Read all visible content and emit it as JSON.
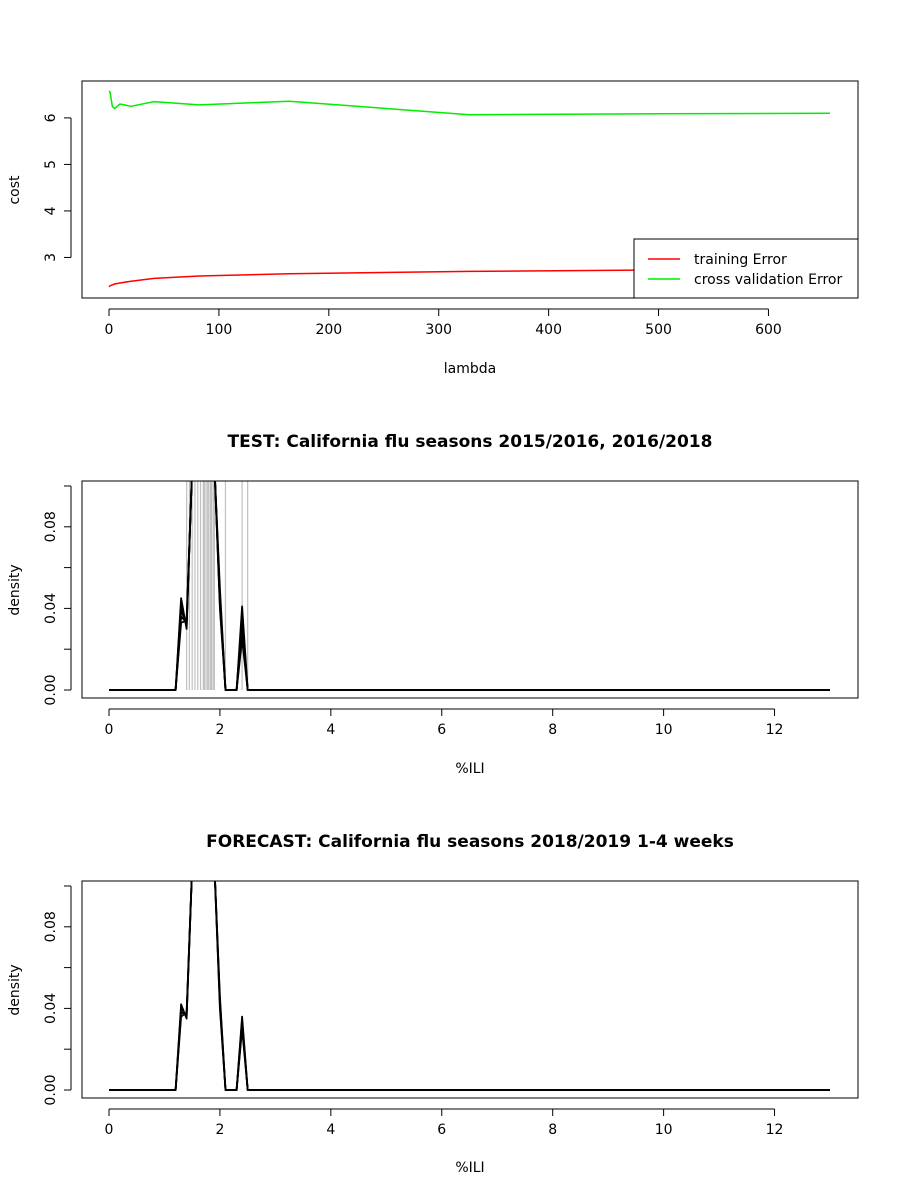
{
  "chart_data": [
    {
      "type": "line",
      "title": "",
      "xlabel": "lambda",
      "ylabel": "cost",
      "xlim": [
        0,
        656
      ],
      "ylim": [
        2.3,
        6.6
      ],
      "xticks": [
        0,
        100,
        200,
        300,
        400,
        500,
        600
      ],
      "yticks": [
        3,
        4,
        5,
        6
      ],
      "legend": {
        "position": "bottom-right",
        "entries": [
          "training Error",
          "cross validation Error"
        ]
      },
      "series": [
        {
          "name": "training Error",
          "color": "#ff0000",
          "x": [
            0,
            1,
            3,
            5,
            10,
            20,
            41,
            82,
            164,
            328,
            500,
            656
          ],
          "y": [
            2.37,
            2.39,
            2.41,
            2.43,
            2.45,
            2.49,
            2.55,
            2.6,
            2.65,
            2.7,
            2.73,
            2.75
          ]
        },
        {
          "name": "cross validation Error",
          "color": "#00ee00",
          "x": [
            0,
            1,
            3,
            5,
            10,
            20,
            41,
            82,
            164,
            328,
            500,
            656
          ],
          "y": [
            6.58,
            6.55,
            6.25,
            6.2,
            6.3,
            6.25,
            6.35,
            6.28,
            6.36,
            6.07,
            6.09,
            6.1
          ]
        }
      ]
    },
    {
      "type": "line",
      "title": "TEST: California  flu seasons 2015/2016, 2016/2018",
      "xlabel": "%ILI",
      "ylabel": "density",
      "xlim": [
        0,
        13
      ],
      "ylim": [
        0,
        0.1
      ],
      "xticks": [
        0,
        2,
        4,
        6,
        8,
        10,
        12
      ],
      "yticks": [
        0.0,
        0.02,
        0.04,
        0.06,
        0.08,
        0.1
      ],
      "ytick_labels": [
        "0.00",
        "",
        "0.04",
        "",
        "0.08",
        ""
      ],
      "vertical_lines": {
        "color": "#c0c0c0",
        "x": [
          1.4,
          1.45,
          1.5,
          1.55,
          1.6,
          1.65,
          1.7,
          1.72,
          1.75,
          1.78,
          1.8,
          1.83,
          1.85,
          1.88,
          1.9,
          2.1,
          2.4,
          2.5
        ]
      },
      "series": [
        {
          "color": "#000000",
          "x": [
            0,
            1.2,
            1.3,
            1.4,
            1.5,
            1.9,
            2.0,
            2.1,
            2.3,
            2.4,
            2.5,
            13
          ],
          "y": [
            0,
            0,
            0.045,
            0.03,
            0.11,
            0.11,
            0.04,
            0,
            0,
            0.041,
            0,
            0
          ]
        },
        {
          "color": "#000000",
          "x": [
            0,
            1.2,
            1.3,
            1.4,
            1.5,
            1.9,
            2.0,
            2.1,
            2.3,
            2.4,
            2.5,
            13
          ],
          "y": [
            0,
            0,
            0.042,
            0.031,
            0.11,
            0.11,
            0.042,
            0,
            0,
            0.036,
            0,
            0
          ]
        },
        {
          "color": "#000000",
          "x": [
            0,
            1.2,
            1.3,
            1.4,
            1.5,
            1.9,
            2.0,
            2.1,
            2.3,
            2.4,
            2.5,
            13
          ],
          "y": [
            0,
            0,
            0.039,
            0.032,
            0.11,
            0.11,
            0.044,
            0,
            0,
            0.032,
            0,
            0
          ]
        },
        {
          "color": "#000000",
          "x": [
            0,
            1.2,
            1.3,
            1.4,
            1.5,
            1.9,
            2.0,
            2.1,
            2.3,
            2.4,
            2.5,
            13
          ],
          "y": [
            0,
            0,
            0.036,
            0.033,
            0.11,
            0.11,
            0.046,
            0,
            0,
            0.029,
            0,
            0
          ]
        },
        {
          "color": "#000000",
          "x": [
            0,
            1.2,
            1.3,
            1.4,
            1.5,
            1.9,
            2.0,
            2.1,
            2.3,
            2.4,
            2.5,
            13
          ],
          "y": [
            0,
            0,
            0.033,
            0.034,
            0.11,
            0.11,
            0.05,
            0,
            0,
            0.025,
            0,
            0
          ]
        }
      ]
    },
    {
      "type": "line",
      "title": "FORECAST: California flu seasons 2018/2019 1-4 weeks",
      "xlabel": "%ILI",
      "ylabel": "density",
      "xlim": [
        0,
        13
      ],
      "ylim": [
        0,
        0.1
      ],
      "xticks": [
        0,
        2,
        4,
        6,
        8,
        10,
        12
      ],
      "yticks": [
        0.0,
        0.02,
        0.04,
        0.06,
        0.08,
        0.1
      ],
      "ytick_labels": [
        "0.00",
        "",
        "0.04",
        "",
        "0.08",
        ""
      ],
      "series": [
        {
          "color": "#000000",
          "x": [
            0,
            1.2,
            1.3,
            1.4,
            1.5,
            1.9,
            2.0,
            2.1,
            2.3,
            2.4,
            2.5,
            13
          ],
          "y": [
            0,
            0,
            0.042,
            0.035,
            0.11,
            0.11,
            0.04,
            0,
            0,
            0.036,
            0,
            0
          ]
        },
        {
          "color": "#000000",
          "x": [
            0,
            1.2,
            1.3,
            1.4,
            1.5,
            1.9,
            2.0,
            2.1,
            2.3,
            2.4,
            2.5,
            13
          ],
          "y": [
            0,
            0,
            0.04,
            0.036,
            0.11,
            0.11,
            0.042,
            0,
            0,
            0.034,
            0,
            0
          ]
        },
        {
          "color": "#000000",
          "x": [
            0,
            1.2,
            1.3,
            1.4,
            1.5,
            1.9,
            2.0,
            2.1,
            2.3,
            2.4,
            2.5,
            13
          ],
          "y": [
            0,
            0,
            0.038,
            0.037,
            0.11,
            0.11,
            0.044,
            0,
            0,
            0.032,
            0,
            0
          ]
        },
        {
          "color": "#000000",
          "x": [
            0,
            1.2,
            1.3,
            1.4,
            1.5,
            1.9,
            2.0,
            2.1,
            2.3,
            2.4,
            2.5,
            13
          ],
          "y": [
            0,
            0,
            0.036,
            0.038,
            0.11,
            0.11,
            0.046,
            0,
            0,
            0.03,
            0,
            0
          ]
        }
      ]
    }
  ]
}
